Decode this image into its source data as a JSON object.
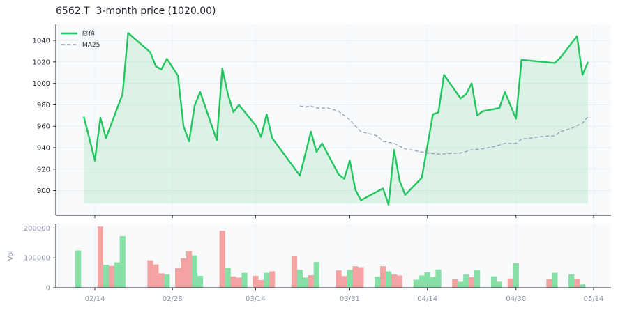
{
  "chart_data": [
    {
      "type": "line",
      "title": "6562.T  3-month price (1020.00)",
      "ylim": [
        877,
        1055
      ],
      "yticks": [
        900,
        920,
        940,
        960,
        980,
        1000,
        1020,
        1040
      ],
      "xticks": [
        "02/14",
        "02/28",
        "03/14",
        "03/31",
        "04/14",
        "04/30",
        "05/14"
      ],
      "grid": true,
      "legend_position": "top-left",
      "series": [
        {
          "name": "終値",
          "color": "#22c55e",
          "fill": true,
          "points": [
            [
              "2024-02-12",
              969
            ],
            [
              "2024-02-13",
              949
            ],
            [
              "2024-02-14",
              928
            ],
            [
              "2024-02-15",
              968
            ],
            [
              "2024-02-16",
              949
            ],
            [
              "2024-02-19",
              990
            ],
            [
              "2024-02-20",
              1047
            ],
            [
              "2024-02-24",
              1029
            ],
            [
              "2024-02-25",
              1016
            ],
            [
              "2024-02-26",
              1013
            ],
            [
              "2024-02-27",
              1023
            ],
            [
              "2024-02-29",
              1007
            ],
            [
              "2024-03-01",
              960
            ],
            [
              "2024-03-02",
              946
            ],
            [
              "2024-03-03",
              979
            ],
            [
              "2024-03-04",
              992
            ],
            [
              "2024-03-07",
              947
            ],
            [
              "2024-03-08",
              1014
            ],
            [
              "2024-03-09",
              990
            ],
            [
              "2024-03-10",
              973
            ],
            [
              "2024-03-11",
              980
            ],
            [
              "2024-03-14",
              961
            ],
            [
              "2024-03-15",
              950
            ],
            [
              "2024-03-16",
              971
            ],
            [
              "2024-03-17",
              949
            ],
            [
              "2024-03-22",
              914
            ],
            [
              "2024-03-24",
              955
            ],
            [
              "2024-03-25",
              936
            ],
            [
              "2024-03-26",
              944
            ],
            [
              "2024-03-29",
              915
            ],
            [
              "2024-03-30",
              911
            ],
            [
              "2024-03-31",
              928
            ],
            [
              "2024-04-01",
              901
            ],
            [
              "2024-04-02",
              891
            ],
            [
              "2024-04-06",
              902
            ],
            [
              "2024-04-07",
              887
            ],
            [
              "2024-04-08",
              938
            ],
            [
              "2024-04-09",
              909
            ],
            [
              "2024-04-10",
              896
            ],
            [
              "2024-04-13",
              912
            ],
            [
              "2024-04-15",
              971
            ],
            [
              "2024-04-16",
              973
            ],
            [
              "2024-04-17",
              1008
            ],
            [
              "2024-04-20",
              986
            ],
            [
              "2024-04-21",
              990
            ],
            [
              "2024-04-22",
              1000
            ],
            [
              "2024-04-23",
              970
            ],
            [
              "2024-04-24",
              974
            ],
            [
              "2024-04-27",
              977
            ],
            [
              "2024-04-28",
              992
            ],
            [
              "2024-04-30",
              967
            ],
            [
              "2024-05-01",
              1022
            ],
            [
              "2024-05-07",
              1019
            ],
            [
              "2024-05-08",
              1024
            ],
            [
              "2024-05-11",
              1044
            ],
            [
              "2024-05-12",
              1008
            ],
            [
              "2024-05-13",
              1020
            ]
          ]
        },
        {
          "name": "MA25",
          "color": "#94a3b8",
          "dashed": true,
          "points": [
            [
              "2024-03-22",
              979
            ],
            [
              "2024-03-23",
              978
            ],
            [
              "2024-03-24",
              979
            ],
            [
              "2024-03-25",
              977
            ],
            [
              "2024-03-27",
              977
            ],
            [
              "2024-03-29",
              974
            ],
            [
              "2024-03-31",
              966
            ],
            [
              "2024-04-02",
              955
            ],
            [
              "2024-04-05",
              951
            ],
            [
              "2024-04-06",
              946
            ],
            [
              "2024-04-08",
              944
            ],
            [
              "2024-04-10",
              939
            ],
            [
              "2024-04-14",
              935
            ],
            [
              "2024-04-16",
              934
            ],
            [
              "2024-04-20",
              935
            ],
            [
              "2024-04-22",
              938
            ],
            [
              "2024-04-24",
              939
            ],
            [
              "2024-04-26",
              941
            ],
            [
              "2024-04-28",
              944
            ],
            [
              "2024-04-30",
              944
            ],
            [
              "2024-05-01",
              948
            ],
            [
              "2024-05-04",
              950
            ],
            [
              "2024-05-06",
              951
            ],
            [
              "2024-05-07",
              951
            ],
            [
              "2024-05-08",
              955
            ],
            [
              "2024-05-10",
              958
            ],
            [
              "2024-05-12",
              963
            ],
            [
              "2024-05-13",
              969
            ]
          ]
        }
      ]
    },
    {
      "type": "bar",
      "ylabel": "Vol",
      "ylim": [
        0,
        215000
      ],
      "yticks": [
        0,
        100000,
        200000
      ],
      "ytick_labels": [
        "0",
        "100000",
        "200000"
      ],
      "colors": {
        "up": "#86e0a6",
        "down": "#f4a3a3"
      },
      "bars": [
        [
          "2024-02-11",
          125000,
          "up"
        ],
        [
          "2024-02-15",
          205000,
          "down"
        ],
        [
          "2024-02-16",
          77000,
          "up"
        ],
        [
          "2024-02-17",
          73000,
          "down"
        ],
        [
          "2024-02-18",
          85000,
          "up"
        ],
        [
          "2024-02-19",
          173000,
          "up"
        ],
        [
          "2024-02-24",
          92000,
          "down"
        ],
        [
          "2024-02-25",
          78000,
          "down"
        ],
        [
          "2024-02-26",
          48000,
          "down"
        ],
        [
          "2024-02-27",
          45000,
          "up"
        ],
        [
          "2024-02-29",
          66000,
          "down"
        ],
        [
          "2024-03-01",
          99000,
          "down"
        ],
        [
          "2024-03-02",
          123000,
          "down"
        ],
        [
          "2024-03-03",
          108000,
          "up"
        ],
        [
          "2024-03-04",
          40000,
          "up"
        ],
        [
          "2024-03-08",
          191000,
          "down"
        ],
        [
          "2024-03-09",
          67000,
          "up"
        ],
        [
          "2024-03-10",
          38000,
          "down"
        ],
        [
          "2024-03-11",
          34000,
          "down"
        ],
        [
          "2024-03-12",
          50000,
          "up"
        ],
        [
          "2024-03-14",
          40000,
          "down"
        ],
        [
          "2024-03-15",
          26000,
          "down"
        ],
        [
          "2024-03-16",
          50000,
          "up"
        ],
        [
          "2024-03-17",
          55000,
          "down"
        ],
        [
          "2024-03-21",
          105000,
          "down"
        ],
        [
          "2024-03-22",
          60000,
          "up"
        ],
        [
          "2024-03-23",
          34000,
          "up"
        ],
        [
          "2024-03-24",
          42000,
          "down"
        ],
        [
          "2024-03-25",
          86000,
          "up"
        ],
        [
          "2024-03-29",
          58000,
          "down"
        ],
        [
          "2024-03-30",
          39000,
          "down"
        ],
        [
          "2024-03-31",
          60000,
          "up"
        ],
        [
          "2024-04-01",
          72000,
          "down"
        ],
        [
          "2024-04-02",
          69000,
          "down"
        ],
        [
          "2024-04-05",
          37000,
          "up"
        ],
        [
          "2024-04-06",
          72000,
          "down"
        ],
        [
          "2024-04-07",
          55000,
          "up"
        ],
        [
          "2024-04-08",
          45000,
          "down"
        ],
        [
          "2024-04-09",
          41000,
          "down"
        ],
        [
          "2024-04-12",
          27000,
          "up"
        ],
        [
          "2024-04-13",
          41000,
          "up"
        ],
        [
          "2024-04-14",
          52000,
          "up"
        ],
        [
          "2024-04-15",
          36000,
          "up"
        ],
        [
          "2024-04-16",
          61000,
          "up"
        ],
        [
          "2024-04-19",
          28000,
          "down"
        ],
        [
          "2024-04-20",
          20000,
          "up"
        ],
        [
          "2024-04-21",
          44000,
          "up"
        ],
        [
          "2024-04-22",
          35000,
          "down"
        ],
        [
          "2024-04-23",
          59000,
          "up"
        ],
        [
          "2024-04-26",
          38000,
          "up"
        ],
        [
          "2024-04-27",
          20000,
          "up"
        ],
        [
          "2024-04-29",
          31000,
          "down"
        ],
        [
          "2024-04-30",
          82000,
          "up"
        ],
        [
          "2024-05-06",
          29000,
          "down"
        ],
        [
          "2024-05-07",
          50000,
          "up"
        ],
        [
          "2024-05-10",
          45000,
          "up"
        ],
        [
          "2024-05-11",
          30000,
          "down"
        ],
        [
          "2024-05-12",
          11000,
          "up"
        ]
      ]
    }
  ]
}
